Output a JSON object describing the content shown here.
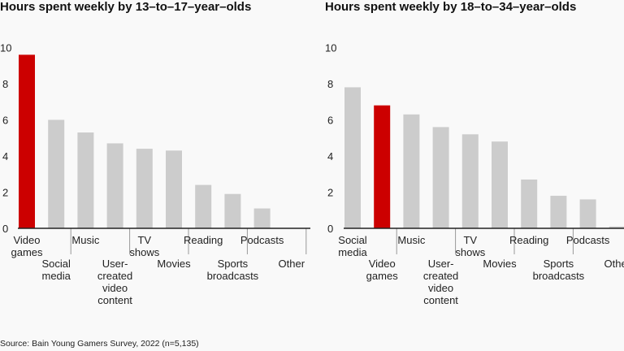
{
  "source": "Source: Bain Young Gamers Survey, 2022 (n=5,135)",
  "colors": {
    "highlight": "#cc0000",
    "bar": "#cccccc",
    "axis": "#222222"
  },
  "chart_data": [
    {
      "type": "bar",
      "title": "Hours spent weekly by 13–to–17–year–olds",
      "ylim": [
        0,
        10
      ],
      "yticks": [
        0,
        2,
        4,
        6,
        8,
        10
      ],
      "categories": [
        "Video games",
        "Social media",
        "Music",
        "User-created video content",
        "TV shows",
        "Movies",
        "Reading",
        "Sports broadcasts",
        "Podcasts",
        "Other"
      ],
      "values": [
        9.6,
        6.0,
        5.3,
        4.7,
        4.4,
        4.3,
        2.4,
        1.9,
        1.1,
        0
      ],
      "highlight": "Video games"
    },
    {
      "type": "bar",
      "title": "Hours spent weekly by 18–to–34–year–olds",
      "ylim": [
        0,
        10
      ],
      "yticks": [
        0,
        2,
        4,
        6,
        8,
        10
      ],
      "categories": [
        "Social media",
        "Video games",
        "Music",
        "User-created video content",
        "TV shows",
        "Movies",
        "Reading",
        "Sports broadcasts",
        "Podcasts",
        "Other"
      ],
      "values": [
        7.8,
        6.8,
        6.3,
        5.6,
        5.2,
        4.8,
        2.7,
        1.8,
        1.6,
        0.1
      ],
      "highlight": "Video games"
    }
  ]
}
